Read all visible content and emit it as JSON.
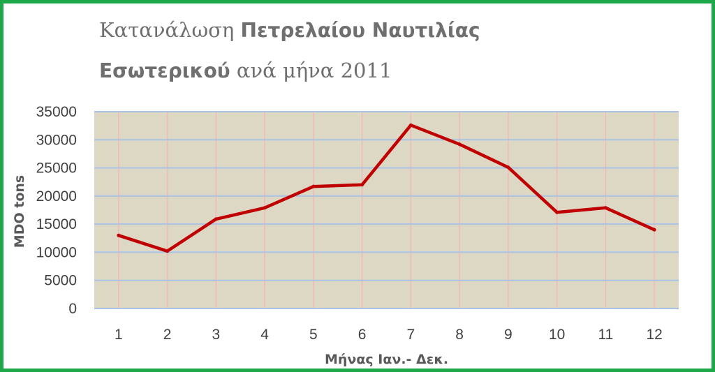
{
  "title": {
    "line1_light": "Κατανάλωση ",
    "line1_bold": "Πετρελαίου Ναυτιλίας",
    "line2_bold": "Εσωτερικού",
    "line2_light": " ανά μήνα 2011"
  },
  "colors": {
    "frame": "#1fa84a",
    "plot_bg": "#ddd8c4",
    "line": "#c00000",
    "h_grid": "#a9c2e6",
    "v_grid": "#f2b8b8"
  },
  "chart_data": {
    "type": "line",
    "title": "Κατανάλωση Πετρελαίου Ναυτιλίας Εσωτερικού ανά μήνα 2011",
    "xlabel": "Μήνας Ιαν.- Δεκ.",
    "ylabel": "MDO tons",
    "categories": [
      "1",
      "2",
      "3",
      "4",
      "5",
      "6",
      "7",
      "8",
      "9",
      "10",
      "11",
      "12"
    ],
    "values": [
      13000,
      10200,
      15900,
      17900,
      21700,
      22000,
      32600,
      29200,
      25100,
      17100,
      17900,
      14000
    ],
    "ylim": [
      0,
      35000
    ],
    "yticks": [
      "0",
      "5000",
      "10000",
      "15000",
      "20000",
      "25000",
      "30000",
      "35000"
    ],
    "grid": true,
    "legend": "none"
  }
}
